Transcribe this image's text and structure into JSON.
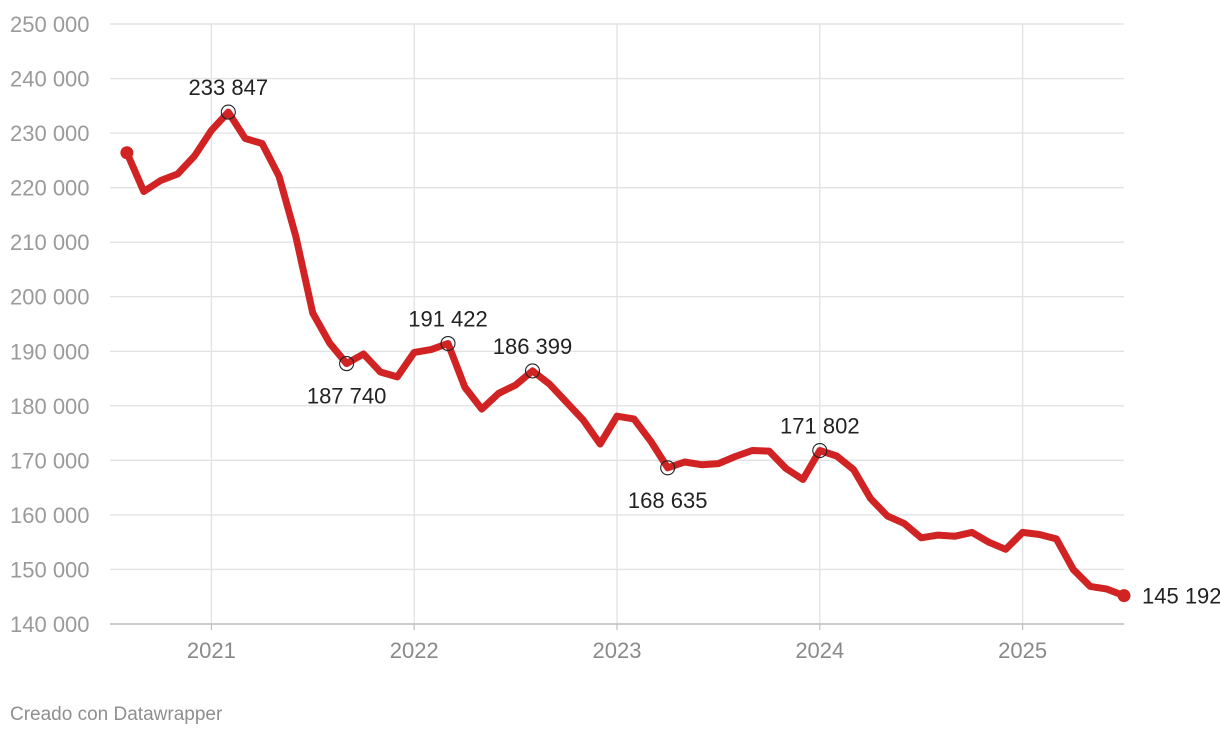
{
  "footer": {
    "credit": "Creado con Datawrapper"
  },
  "colors": {
    "line": "#d12323",
    "grid": "#e3e3e3",
    "axis": "#bfbfbf"
  },
  "chart_data": {
    "type": "line",
    "title": "",
    "xlabel": "",
    "ylabel": "",
    "ylim": [
      140000,
      250000
    ],
    "yticks": [
      250000,
      240000,
      230000,
      220000,
      210000,
      200000,
      190000,
      180000,
      170000,
      160000,
      150000,
      140000
    ],
    "ytick_labels": [
      "250 000",
      "240 000",
      "230 000",
      "220 000",
      "210 000",
      "200 000",
      "190 000",
      "180 000",
      "170 000",
      "160 000",
      "150 000",
      "140 000"
    ],
    "xlim": [
      "2020-07",
      "2025-07"
    ],
    "xticks": [
      "2021-01",
      "2022-01",
      "2023-01",
      "2024-01",
      "2025-01"
    ],
    "xtick_labels": [
      "2021",
      "2022",
      "2023",
      "2024",
      "2025"
    ],
    "grid": true,
    "series": [
      {
        "x": [
          "2020-08",
          "2020-09",
          "2020-10",
          "2020-11",
          "2020-12",
          "2021-01",
          "2021-02",
          "2021-03",
          "2021-04",
          "2021-05",
          "2021-06",
          "2021-07",
          "2021-08",
          "2021-09",
          "2021-10",
          "2021-11",
          "2021-12",
          "2022-01",
          "2022-02",
          "2022-03",
          "2022-04",
          "2022-05",
          "2022-06",
          "2022-07",
          "2022-08",
          "2022-09",
          "2022-10",
          "2022-11",
          "2022-12",
          "2023-01",
          "2023-02",
          "2023-03",
          "2023-04",
          "2023-05",
          "2023-06",
          "2023-07",
          "2023-08",
          "2023-09",
          "2023-10",
          "2023-11",
          "2023-12",
          "2024-01",
          "2024-02",
          "2024-03",
          "2024-04",
          "2024-05",
          "2024-06",
          "2024-07",
          "2024-08",
          "2024-09",
          "2024-10",
          "2024-11",
          "2024-12",
          "2025-01",
          "2025-02",
          "2025-03",
          "2025-04",
          "2025-05",
          "2025-06",
          "2025-07"
        ],
        "values": [
          226400,
          219300,
          221300,
          222500,
          225800,
          230500,
          233847,
          229000,
          228100,
          222100,
          211000,
          197000,
          191500,
          187740,
          189500,
          186200,
          185300,
          189800,
          190300,
          191422,
          183400,
          179400,
          182300,
          183800,
          186399,
          184000,
          180700,
          177400,
          173000,
          178100,
          177600,
          173500,
          168635,
          169700,
          169200,
          169400,
          170700,
          171800,
          171700,
          168500,
          166500,
          171802,
          170800,
          168300,
          163000,
          159800,
          158400,
          155800,
          156300,
          156100,
          156800,
          155000,
          153700,
          156800,
          156400,
          155600,
          150000,
          146900,
          146400,
          145192
        ]
      }
    ],
    "annotations": [
      {
        "x": "2021-02",
        "y": 233847,
        "label": "233 847",
        "position": "above"
      },
      {
        "x": "2021-09",
        "y": 187740,
        "label": "187 740",
        "position": "below"
      },
      {
        "x": "2022-03",
        "y": 191422,
        "label": "191 422",
        "position": "above"
      },
      {
        "x": "2022-08",
        "y": 186399,
        "label": "186 399",
        "position": "above"
      },
      {
        "x": "2023-04",
        "y": 168635,
        "label": "168 635",
        "position": "below"
      },
      {
        "x": "2024-01",
        "y": 171802,
        "label": "171 802",
        "position": "above"
      },
      {
        "x": "2025-07",
        "y": 145192,
        "label": "145 192",
        "position": "right"
      }
    ]
  }
}
